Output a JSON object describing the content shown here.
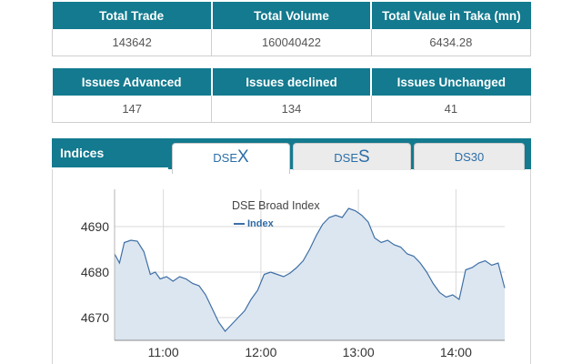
{
  "market_summary": {
    "headers": [
      "Total Trade",
      "Total Volume",
      "Total Value in Taka (mn)"
    ],
    "values": [
      "143642",
      "160040422",
      "6434.28"
    ]
  },
  "issues": {
    "headers": [
      "Issues Advanced",
      "Issues declined",
      "Issues Unchanged"
    ],
    "values": [
      "147",
      "134",
      "41"
    ]
  },
  "indices": {
    "title": "Indices",
    "tabs": [
      {
        "prefix": "DSE",
        "suffix": "X",
        "active": true
      },
      {
        "prefix": "DSE",
        "suffix": "S",
        "active": false
      },
      {
        "label": "DS30",
        "active": false
      }
    ]
  },
  "colors": {
    "header_bg": "#137a8f",
    "line": "#3e6fa6",
    "area": "#dce6f0"
  },
  "chart_data": {
    "type": "area",
    "title": "DSE Broad Index",
    "series": [
      {
        "name": "Index",
        "points": [
          [
            "10:30",
            4684.0
          ],
          [
            "10:33",
            4682.0
          ],
          [
            "10:36",
            4686.5
          ],
          [
            "10:40",
            4687.0
          ],
          [
            "10:44",
            4686.8
          ],
          [
            "10:48",
            4684.5
          ],
          [
            "10:52",
            4679.5
          ],
          [
            "10:55",
            4680.0
          ],
          [
            "10:58",
            4678.5
          ],
          [
            "11:02",
            4679.0
          ],
          [
            "11:06",
            4678.0
          ],
          [
            "11:10",
            4679.0
          ],
          [
            "11:14",
            4678.5
          ],
          [
            "11:18",
            4677.5
          ],
          [
            "11:22",
            4677.0
          ],
          [
            "11:26",
            4675.0
          ],
          [
            "11:30",
            4672.0
          ],
          [
            "11:34",
            4669.0
          ],
          [
            "11:38",
            4667.0
          ],
          [
            "11:42",
            4668.5
          ],
          [
            "11:46",
            4670.0
          ],
          [
            "11:50",
            4671.5
          ],
          [
            "11:54",
            4674.0
          ],
          [
            "11:58",
            4676.0
          ],
          [
            "12:02",
            4679.5
          ],
          [
            "12:06",
            4680.0
          ],
          [
            "12:10",
            4679.5
          ],
          [
            "12:14",
            4679.0
          ],
          [
            "12:18",
            4679.8
          ],
          [
            "12:22",
            4681.0
          ],
          [
            "12:26",
            4682.5
          ],
          [
            "12:30",
            4685.0
          ],
          [
            "12:34",
            4688.0
          ],
          [
            "12:38",
            4690.5
          ],
          [
            "12:42",
            4692.0
          ],
          [
            "12:46",
            4692.5
          ],
          [
            "12:50",
            4692.0
          ],
          [
            "12:54",
            4694.0
          ],
          [
            "12:58",
            4693.5
          ],
          [
            "13:02",
            4692.5
          ],
          [
            "13:06",
            4691.0
          ],
          [
            "13:10",
            4687.5
          ],
          [
            "13:14",
            4686.5
          ],
          [
            "13:18",
            4687.0
          ],
          [
            "13:22",
            4686.0
          ],
          [
            "13:26",
            4685.5
          ],
          [
            "13:30",
            4684.0
          ],
          [
            "13:34",
            4683.5
          ],
          [
            "13:38",
            4682.0
          ],
          [
            "13:42",
            4680.0
          ],
          [
            "13:46",
            4677.5
          ],
          [
            "13:50",
            4675.5
          ],
          [
            "13:54",
            4674.5
          ],
          [
            "13:58",
            4675.0
          ],
          [
            "14:02",
            4674.0
          ],
          [
            "14:06",
            4680.5
          ],
          [
            "14:10",
            4681.0
          ],
          [
            "14:14",
            4682.0
          ],
          [
            "14:18",
            4682.5
          ],
          [
            "14:22",
            4681.5
          ],
          [
            "14:26",
            4682.0
          ],
          [
            "14:30",
            4676.5
          ]
        ]
      }
    ],
    "x_ticks": [
      "11:00",
      "12:00",
      "13:00",
      "14:00"
    ],
    "x_range": [
      "10:30",
      "14:30"
    ],
    "y_ticks": [
      4670,
      4680,
      4690
    ],
    "y_range": [
      4665,
      4695
    ],
    "grid": true,
    "legend": "top-left"
  }
}
